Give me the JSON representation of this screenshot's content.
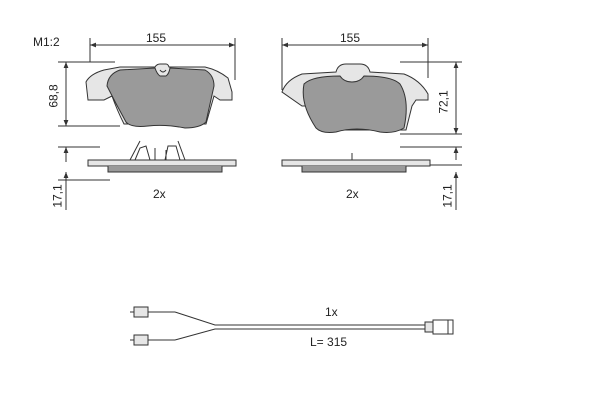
{
  "scale": "M1:2",
  "pad_left": {
    "width": "155",
    "height": "68,8",
    "thickness": "17,1",
    "quantity": "2x"
  },
  "pad_right": {
    "width": "155",
    "height": "72,1",
    "thickness": "17,1",
    "quantity": "2x"
  },
  "sensor": {
    "quantity": "1x",
    "length": "L= 315"
  },
  "colors": {
    "line": "#333333",
    "pad_fill": "#9a9a9a",
    "plate_fill": "#e6e6e6",
    "background": "#ffffff"
  }
}
